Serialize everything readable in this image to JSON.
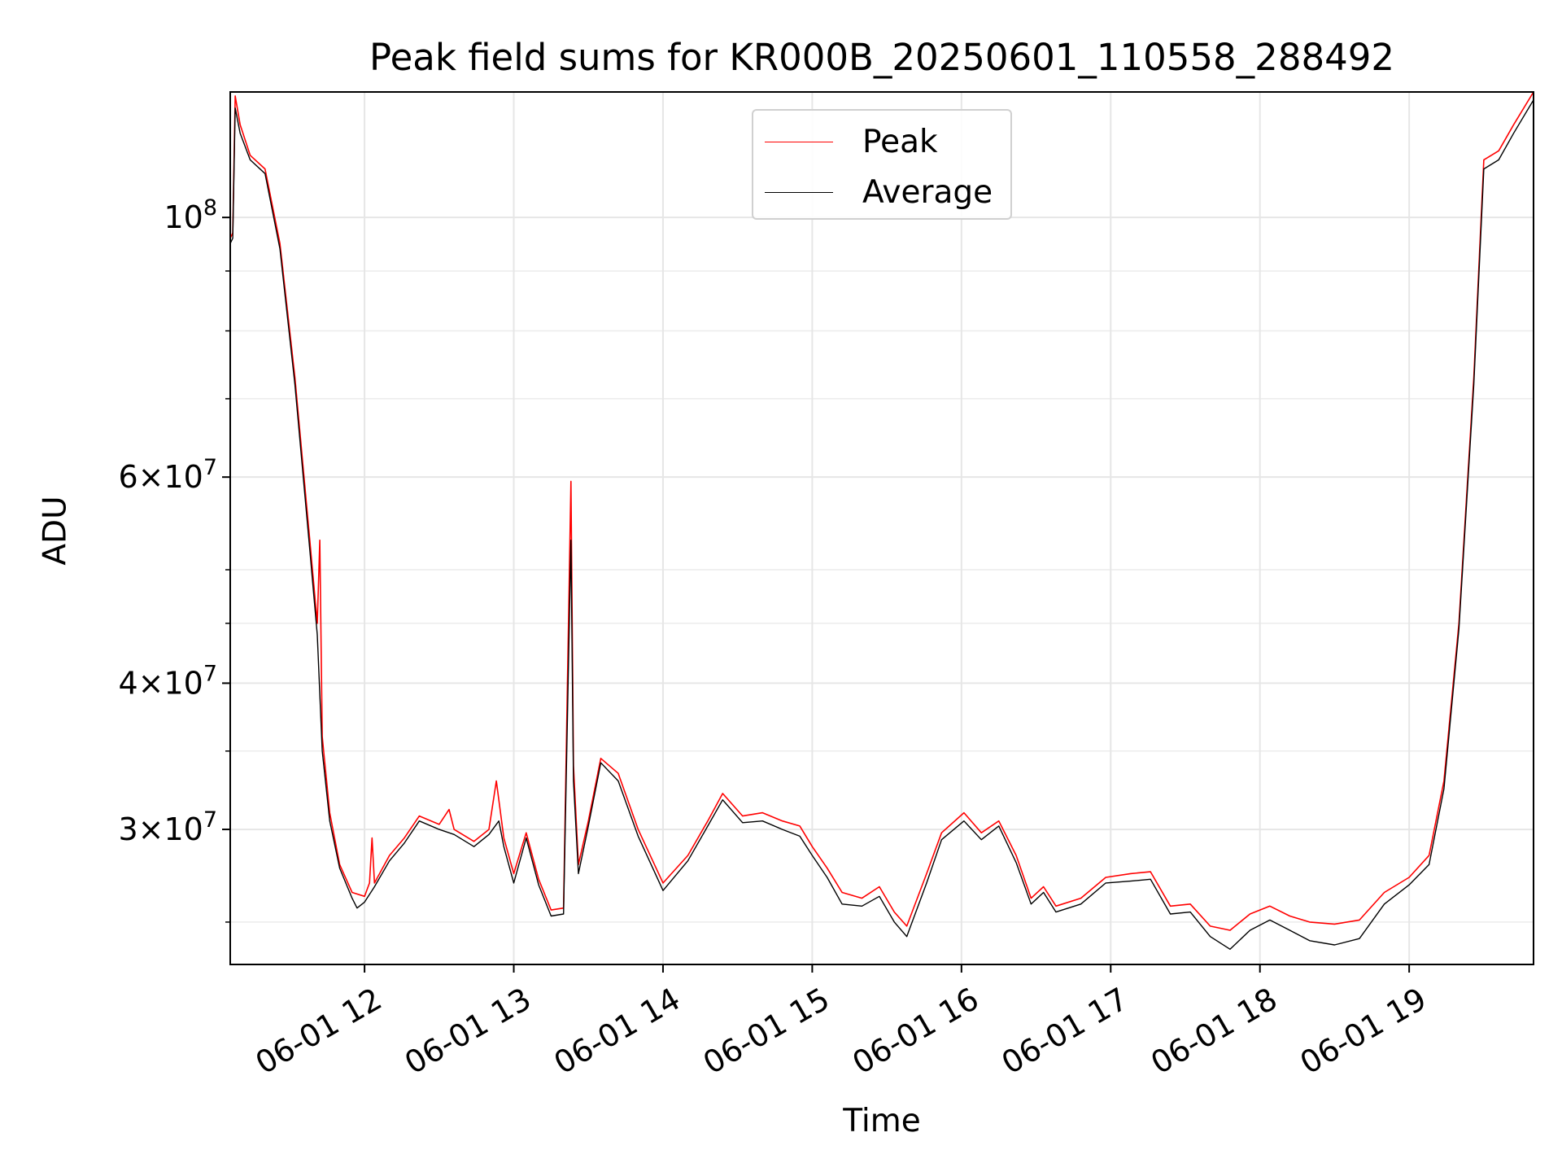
{
  "chart_data": {
    "type": "line",
    "title": "Peak field sums for KR000B_20250601_110558_288492",
    "xlabel": "Time",
    "ylabel": "ADU",
    "yscale": "log",
    "grid": true,
    "legend_placement": "upper-center",
    "xlim": [
      "2025-06-01 11:06",
      "2025-06-01 19:50"
    ],
    "ylim": [
      23000000,
      128000000
    ],
    "x_ticks": [
      "06-01 12",
      "06-01 13",
      "06-01 14",
      "06-01 15",
      "06-01 16",
      "06-01 17",
      "06-01 18",
      "06-01 19"
    ],
    "y_ticks": [
      {
        "value": 30000000,
        "mant": "3",
        "exp": "7"
      },
      {
        "value": 40000000,
        "mant": "4",
        "exp": "7"
      },
      {
        "value": 60000000,
        "mant": "6",
        "exp": "7"
      },
      {
        "value": 100000000,
        "mant": "",
        "exp": "8"
      }
    ],
    "series": [
      {
        "name": "Peak",
        "color": "#ff0000",
        "points": [
          [
            "2025-06-01 11:06",
            96000000
          ],
          [
            "2025-06-01 11:07",
            97000000
          ],
          [
            "2025-06-01 11:08",
            127000000
          ],
          [
            "2025-06-01 11:10",
            120000000
          ],
          [
            "2025-06-01 11:14",
            113000000
          ],
          [
            "2025-06-01 11:20",
            110000000
          ],
          [
            "2025-06-01 11:26",
            95000000
          ],
          [
            "2025-06-01 11:32",
            73000000
          ],
          [
            "2025-06-01 11:38",
            53000000
          ],
          [
            "2025-06-01 11:41",
            45000000
          ],
          [
            "2025-06-01 11:42",
            53000000
          ],
          [
            "2025-06-01 11:43",
            36000000
          ],
          [
            "2025-06-01 11:46",
            31000000
          ],
          [
            "2025-06-01 11:50",
            28000000
          ],
          [
            "2025-06-01 11:55",
            26500000
          ],
          [
            "2025-06-01 12:00",
            26300000
          ],
          [
            "2025-06-01 12:02",
            27000000
          ],
          [
            "2025-06-01 12:03",
            29500000
          ],
          [
            "2025-06-01 12:04",
            27000000
          ],
          [
            "2025-06-01 12:10",
            28500000
          ],
          [
            "2025-06-01 12:16",
            29500000
          ],
          [
            "2025-06-01 12:22",
            30800000
          ],
          [
            "2025-06-01 12:30",
            30300000
          ],
          [
            "2025-06-01 12:34",
            31200000
          ],
          [
            "2025-06-01 12:36",
            30000000
          ],
          [
            "2025-06-01 12:44",
            29300000
          ],
          [
            "2025-06-01 12:50",
            30000000
          ],
          [
            "2025-06-01 12:53",
            33000000
          ],
          [
            "2025-06-01 12:56",
            29500000
          ],
          [
            "2025-06-01 13:00",
            27500000
          ],
          [
            "2025-06-01 13:05",
            29800000
          ],
          [
            "2025-06-01 13:10",
            27200000
          ],
          [
            "2025-06-01 13:15",
            25600000
          ],
          [
            "2025-06-01 13:20",
            25700000
          ],
          [
            "2025-06-01 13:23",
            59500000
          ],
          [
            "2025-06-01 13:24",
            34000000
          ],
          [
            "2025-06-01 13:26",
            28000000
          ],
          [
            "2025-06-01 13:30",
            30500000
          ],
          [
            "2025-06-01 13:35",
            34500000
          ],
          [
            "2025-06-01 13:42",
            33500000
          ],
          [
            "2025-06-01 13:50",
            30000000
          ],
          [
            "2025-06-01 14:00",
            27000000
          ],
          [
            "2025-06-01 14:10",
            28500000
          ],
          [
            "2025-06-01 14:18",
            30500000
          ],
          [
            "2025-06-01 14:24",
            32200000
          ],
          [
            "2025-06-01 14:32",
            30800000
          ],
          [
            "2025-06-01 14:40",
            31000000
          ],
          [
            "2025-06-01 14:48",
            30500000
          ],
          [
            "2025-06-01 14:55",
            30200000
          ],
          [
            "2025-06-01 15:00",
            29000000
          ],
          [
            "2025-06-01 15:06",
            27800000
          ],
          [
            "2025-06-01 15:12",
            26500000
          ],
          [
            "2025-06-01 15:20",
            26200000
          ],
          [
            "2025-06-01 15:27",
            26800000
          ],
          [
            "2025-06-01 15:33",
            25500000
          ],
          [
            "2025-06-01 15:38",
            24800000
          ],
          [
            "2025-06-01 15:46",
            27500000
          ],
          [
            "2025-06-01 15:52",
            29800000
          ],
          [
            "2025-06-01 16:01",
            31000000
          ],
          [
            "2025-06-01 16:08",
            29800000
          ],
          [
            "2025-06-01 16:15",
            30500000
          ],
          [
            "2025-06-01 16:22",
            28500000
          ],
          [
            "2025-06-01 16:28",
            26200000
          ],
          [
            "2025-06-01 16:33",
            26800000
          ],
          [
            "2025-06-01 16:38",
            25800000
          ],
          [
            "2025-06-01 16:48",
            26200000
          ],
          [
            "2025-06-01 16:58",
            27300000
          ],
          [
            "2025-06-01 17:08",
            27500000
          ],
          [
            "2025-06-01 17:16",
            27600000
          ],
          [
            "2025-06-01 17:24",
            25800000
          ],
          [
            "2025-06-01 17:32",
            25900000
          ],
          [
            "2025-06-01 17:40",
            24800000
          ],
          [
            "2025-06-01 17:48",
            24600000
          ],
          [
            "2025-06-01 17:56",
            25400000
          ],
          [
            "2025-06-01 18:04",
            25800000
          ],
          [
            "2025-06-01 18:12",
            25300000
          ],
          [
            "2025-06-01 18:20",
            25000000
          ],
          [
            "2025-06-01 18:30",
            24900000
          ],
          [
            "2025-06-01 18:40",
            25100000
          ],
          [
            "2025-06-01 18:50",
            26500000
          ],
          [
            "2025-06-01 19:00",
            27300000
          ],
          [
            "2025-06-01 19:08",
            28500000
          ],
          [
            "2025-06-01 19:14",
            33000000
          ],
          [
            "2025-06-01 19:20",
            45000000
          ],
          [
            "2025-06-01 19:26",
            73000000
          ],
          [
            "2025-06-01 19:30",
            112000000
          ],
          [
            "2025-06-01 19:36",
            114000000
          ],
          [
            "2025-06-01 19:42",
            120000000
          ],
          [
            "2025-06-01 19:50",
            128000000
          ]
        ]
      },
      {
        "name": "Average",
        "color": "#000000",
        "points": [
          [
            "2025-06-01 11:06",
            95000000
          ],
          [
            "2025-06-01 11:07",
            96000000
          ],
          [
            "2025-06-01 11:08",
            124000000
          ],
          [
            "2025-06-01 11:10",
            118000000
          ],
          [
            "2025-06-01 11:14",
            112000000
          ],
          [
            "2025-06-01 11:20",
            109000000
          ],
          [
            "2025-06-01 11:26",
            94000000
          ],
          [
            "2025-06-01 11:32",
            72000000
          ],
          [
            "2025-06-01 11:38",
            52000000
          ],
          [
            "2025-06-01 11:41",
            44000000
          ],
          [
            "2025-06-01 11:43",
            35000000
          ],
          [
            "2025-06-01 11:46",
            30500000
          ],
          [
            "2025-06-01 11:50",
            27800000
          ],
          [
            "2025-06-01 11:55",
            26200000
          ],
          [
            "2025-06-01 11:57",
            25700000
          ],
          [
            "2025-06-01 12:00",
            26000000
          ],
          [
            "2025-06-01 12:04",
            26800000
          ],
          [
            "2025-06-01 12:10",
            28200000
          ],
          [
            "2025-06-01 12:16",
            29200000
          ],
          [
            "2025-06-01 12:22",
            30500000
          ],
          [
            "2025-06-01 12:30",
            30000000
          ],
          [
            "2025-06-01 12:36",
            29700000
          ],
          [
            "2025-06-01 12:44",
            29000000
          ],
          [
            "2025-06-01 12:50",
            29700000
          ],
          [
            "2025-06-01 12:54",
            30500000
          ],
          [
            "2025-06-01 12:56",
            29000000
          ],
          [
            "2025-06-01 13:00",
            27000000
          ],
          [
            "2025-06-01 13:05",
            29500000
          ],
          [
            "2025-06-01 13:10",
            26900000
          ],
          [
            "2025-06-01 13:15",
            25300000
          ],
          [
            "2025-06-01 13:20",
            25400000
          ],
          [
            "2025-06-01 13:23",
            53000000
          ],
          [
            "2025-06-01 13:24",
            33000000
          ],
          [
            "2025-06-01 13:26",
            27500000
          ],
          [
            "2025-06-01 13:30",
            30200000
          ],
          [
            "2025-06-01 13:35",
            34200000
          ],
          [
            "2025-06-01 13:42",
            33000000
          ],
          [
            "2025-06-01 13:50",
            29600000
          ],
          [
            "2025-06-01 14:00",
            26600000
          ],
          [
            "2025-06-01 14:10",
            28200000
          ],
          [
            "2025-06-01 14:18",
            30200000
          ],
          [
            "2025-06-01 14:24",
            31800000
          ],
          [
            "2025-06-01 14:32",
            30400000
          ],
          [
            "2025-06-01 14:40",
            30500000
          ],
          [
            "2025-06-01 14:48",
            30000000
          ],
          [
            "2025-06-01 14:55",
            29600000
          ],
          [
            "2025-06-01 15:00",
            28500000
          ],
          [
            "2025-06-01 15:06",
            27300000
          ],
          [
            "2025-06-01 15:12",
            25900000
          ],
          [
            "2025-06-01 15:20",
            25800000
          ],
          [
            "2025-06-01 15:27",
            26300000
          ],
          [
            "2025-06-01 15:33",
            25000000
          ],
          [
            "2025-06-01 15:38",
            24300000
          ],
          [
            "2025-06-01 15:46",
            27000000
          ],
          [
            "2025-06-01 15:52",
            29400000
          ],
          [
            "2025-06-01 16:01",
            30500000
          ],
          [
            "2025-06-01 16:08",
            29400000
          ],
          [
            "2025-06-01 16:15",
            30200000
          ],
          [
            "2025-06-01 16:22",
            28100000
          ],
          [
            "2025-06-01 16:28",
            25900000
          ],
          [
            "2025-06-01 16:33",
            26500000
          ],
          [
            "2025-06-01 16:38",
            25500000
          ],
          [
            "2025-06-01 16:48",
            25900000
          ],
          [
            "2025-06-01 16:58",
            27000000
          ],
          [
            "2025-06-01 17:08",
            27100000
          ],
          [
            "2025-06-01 17:16",
            27200000
          ],
          [
            "2025-06-01 17:24",
            25400000
          ],
          [
            "2025-06-01 17:32",
            25500000
          ],
          [
            "2025-06-01 17:40",
            24300000
          ],
          [
            "2025-06-01 17:48",
            23700000
          ],
          [
            "2025-06-01 17:56",
            24600000
          ],
          [
            "2025-06-01 18:04",
            25100000
          ],
          [
            "2025-06-01 18:12",
            24600000
          ],
          [
            "2025-06-01 18:20",
            24100000
          ],
          [
            "2025-06-01 18:30",
            23900000
          ],
          [
            "2025-06-01 18:40",
            24200000
          ],
          [
            "2025-06-01 18:50",
            25900000
          ],
          [
            "2025-06-01 19:00",
            26900000
          ],
          [
            "2025-06-01 19:08",
            28000000
          ],
          [
            "2025-06-01 19:14",
            32500000
          ],
          [
            "2025-06-01 19:20",
            44500000
          ],
          [
            "2025-06-01 19:26",
            72000000
          ],
          [
            "2025-06-01 19:30",
            110000000
          ],
          [
            "2025-06-01 19:36",
            112000000
          ],
          [
            "2025-06-01 19:42",
            118000000
          ],
          [
            "2025-06-01 19:50",
            126000000
          ]
        ]
      }
    ]
  }
}
